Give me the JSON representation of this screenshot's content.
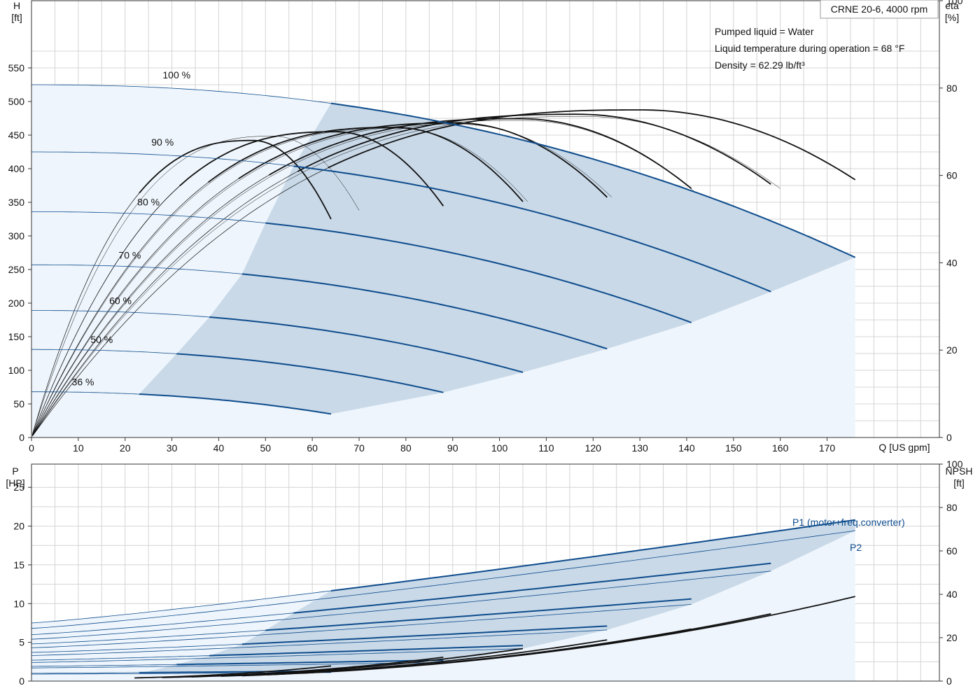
{
  "colors": {
    "curve_blue": "#0e4c8c",
    "zone_dark": "#c9d9e8",
    "zone_light": "#eef5fc",
    "eff_black": "#111111",
    "grid": "#d4d4d4"
  },
  "info": {
    "model": "CRNE 20-6, 4000 rpm",
    "liquid": "Pumped liquid = Water",
    "temperature": "Liquid temperature during operation = 68 °F",
    "density": "Density = 62.29 lb/ft³"
  },
  "chart_data": [
    {
      "type": "line",
      "name": "QH",
      "xlabel": "Q [US gpm]",
      "ylabel": [
        "H",
        "[ft]"
      ],
      "y2label": [
        "eta",
        "[%]"
      ],
      "xlim": [
        0,
        194
      ],
      "ylim": [
        0,
        650
      ],
      "y2lim": [
        0,
        100
      ],
      "x_ticks": [
        0,
        10,
        20,
        30,
        40,
        50,
        60,
        70,
        80,
        90,
        100,
        110,
        120,
        130,
        140,
        150,
        160,
        170
      ],
      "y_ticks": [
        0,
        50,
        100,
        150,
        200,
        250,
        300,
        350,
        400,
        450,
        500,
        550
      ],
      "y2_ticks": [
        0,
        20,
        40,
        60,
        80,
        100
      ],
      "grid": true,
      "speed_curves": [
        {
          "label": "100 %",
          "h0": 525,
          "qmax": 176,
          "hend": 268
        },
        {
          "label": "90 %",
          "h0": 425,
          "qmax": 158,
          "hend": 217
        },
        {
          "label": "80 %",
          "h0": 336,
          "qmax": 141,
          "hend": 171
        },
        {
          "label": "70 %",
          "h0": 257,
          "qmax": 123,
          "hend": 132
        },
        {
          "label": "60 %",
          "h0": 189,
          "qmax": 105,
          "hend": 97
        },
        {
          "label": "50 %",
          "h0": 131,
          "qmax": 88,
          "hend": 67
        },
        {
          "label": "36 %",
          "h0": 68,
          "qmax": 64,
          "hend": 35
        }
      ],
      "efficiency_peaks": [
        {
          "qmax": 176,
          "eta_peak": 75,
          "eta_end": 59
        },
        {
          "qmax": 158,
          "eta_peak": 74,
          "eta_end": 58
        },
        {
          "qmax": 141,
          "eta_peak": 73,
          "eta_end": 57
        },
        {
          "qmax": 123,
          "eta_peak": 72,
          "eta_end": 55
        },
        {
          "qmax": 105,
          "eta_peak": 71,
          "eta_end": 54
        },
        {
          "qmax": 88,
          "eta_peak": 70,
          "eta_end": 53
        },
        {
          "qmax": 64,
          "eta_peak": 68,
          "eta_end": 50
        }
      ],
      "operating_zone_left_boundary_q": [
        64,
        56,
        50,
        45,
        38,
        31,
        23
      ]
    },
    {
      "type": "line",
      "name": "Power",
      "ylabel": [
        "P",
        "[HP]"
      ],
      "y2label": [
        "NPSH",
        "[ft]"
      ],
      "xlim": [
        0,
        194
      ],
      "ylim": [
        0,
        28
      ],
      "y2lim": [
        0,
        100
      ],
      "y_ticks": [
        0,
        5,
        10,
        15,
        20,
        25
      ],
      "y2_ticks": [
        0,
        20,
        40,
        60,
        80,
        100
      ],
      "grid": true,
      "series_labels": {
        "p1": "P1 (motor+freq.converter)",
        "p2": "P2"
      },
      "power_curves": [
        {
          "qmax": 176,
          "p1_0": 7.5,
          "p1_end": 20.8,
          "p2_0": 6.8,
          "p2_end": 19.4
        },
        {
          "qmax": 158,
          "p1_0": 6.0,
          "p1_end": 15.2,
          "p2_0": 5.4,
          "p2_end": 14.2
        },
        {
          "qmax": 141,
          "p1_0": 4.8,
          "p1_end": 10.6,
          "p2_0": 4.3,
          "p2_end": 9.9
        },
        {
          "qmax": 123,
          "p1_0": 3.7,
          "p1_end": 7.1,
          "p2_0": 3.3,
          "p2_end": 6.6
        },
        {
          "qmax": 105,
          "p1_0": 2.7,
          "p1_end": 4.6,
          "p2_0": 2.4,
          "p2_end": 4.2
        },
        {
          "qmax": 88,
          "p1_0": 1.9,
          "p1_end": 2.7,
          "p2_0": 1.7,
          "p2_end": 2.4
        },
        {
          "qmax": 64,
          "p1_0": 1.0,
          "p1_end": 1.3,
          "p2_0": 0.9,
          "p2_end": 1.1
        }
      ],
      "npsh_curves": [
        {
          "qmax": 176,
          "npsh_end": 39
        },
        {
          "qmax": 158,
          "npsh_end": 31
        },
        {
          "qmax": 141,
          "npsh_end": 24
        },
        {
          "qmax": 123,
          "npsh_end": 19
        },
        {
          "qmax": 105,
          "npsh_end": 15
        },
        {
          "qmax": 88,
          "npsh_end": 11
        },
        {
          "qmax": 64,
          "npsh_end": 7
        }
      ]
    }
  ]
}
